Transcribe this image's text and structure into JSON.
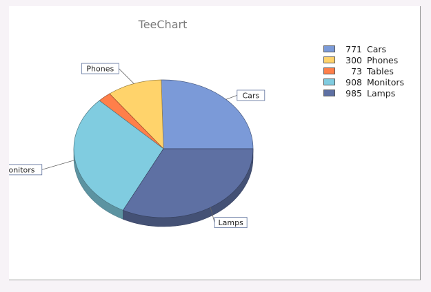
{
  "chart_data": {
    "type": "pie",
    "title": "TeeChart",
    "slices": [
      {
        "label": "Cars",
        "value": 771,
        "color": "#7b9ad8"
      },
      {
        "label": "Phones",
        "value": 300,
        "color": "#ffd36b"
      },
      {
        "label": "Tables",
        "value": 73,
        "color": "#ff7f4a"
      },
      {
        "label": "Monitors",
        "value": 908,
        "color": "#80cce0"
      },
      {
        "label": "Lamps",
        "value": 985,
        "color": "#5e70a3"
      }
    ],
    "legend_position": "top-right",
    "three_d": true
  }
}
